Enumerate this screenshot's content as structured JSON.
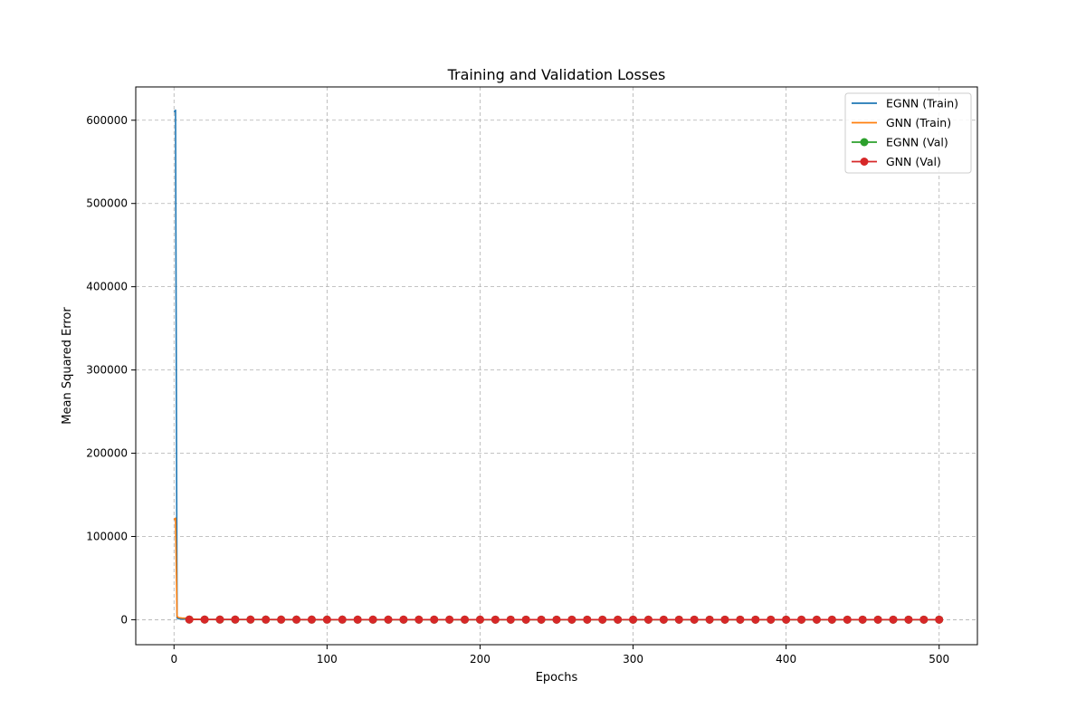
{
  "chart_data": {
    "type": "line",
    "title": "Training and Validation Losses",
    "xlabel": "Epochs",
    "ylabel": "Mean Squared Error",
    "xlim": [
      -25,
      525
    ],
    "ylim": [
      -30000,
      640000
    ],
    "xticks": [
      0,
      100,
      200,
      300,
      400,
      500
    ],
    "yticks": [
      0,
      100000,
      200000,
      300000,
      400000,
      500000,
      600000
    ],
    "grid": true,
    "legend_position": "top-right",
    "series": [
      {
        "name": "EGNN (Train)",
        "color": "#1f77b4",
        "marker": false,
        "x": [
          0,
          1,
          2,
          3,
          5,
          10,
          20,
          50,
          100,
          200,
          300,
          400,
          500
        ],
        "values": [
          610000,
          612000,
          2000,
          1200,
          800,
          500,
          300,
          200,
          150,
          120,
          100,
          90,
          80
        ]
      },
      {
        "name": "GNN (Train)",
        "color": "#ff7f0e",
        "marker": false,
        "x": [
          0,
          1,
          2,
          3,
          5,
          8,
          10,
          20,
          50,
          100,
          200,
          300,
          400,
          500
        ],
        "values": [
          120000,
          122000,
          4000,
          2500,
          2000,
          1800,
          1000,
          300,
          200,
          150,
          120,
          100,
          90,
          80
        ]
      },
      {
        "name": "EGNN (Val)",
        "color": "#2ca02c",
        "marker": true,
        "x": [
          10,
          20,
          30,
          40,
          50,
          60,
          70,
          80,
          90,
          100,
          110,
          120,
          130,
          140,
          150,
          160,
          170,
          180,
          190,
          200,
          210,
          220,
          230,
          240,
          250,
          260,
          270,
          280,
          290,
          300,
          310,
          320,
          330,
          340,
          350,
          360,
          370,
          380,
          390,
          400,
          410,
          420,
          430,
          440,
          450,
          460,
          470,
          480,
          490,
          500
        ],
        "values": [
          200,
          180,
          160,
          150,
          140,
          135,
          130,
          125,
          120,
          118,
          115,
          112,
          110,
          108,
          106,
          104,
          102,
          100,
          98,
          96,
          95,
          94,
          93,
          92,
          91,
          90,
          89,
          88,
          87,
          86,
          85,
          84,
          83,
          82,
          81,
          80,
          79,
          78,
          77,
          76,
          75,
          74,
          73,
          72,
          71,
          70,
          69,
          68,
          67,
          66
        ]
      },
      {
        "name": "GNN (Val)",
        "color": "#d62728",
        "marker": true,
        "x": [
          10,
          20,
          30,
          40,
          50,
          60,
          70,
          80,
          90,
          100,
          110,
          120,
          130,
          140,
          150,
          160,
          170,
          180,
          190,
          200,
          210,
          220,
          230,
          240,
          250,
          260,
          270,
          280,
          290,
          300,
          310,
          320,
          330,
          340,
          350,
          360,
          370,
          380,
          390,
          400,
          410,
          420,
          430,
          440,
          450,
          460,
          470,
          480,
          490,
          500
        ],
        "values": [
          250,
          220,
          200,
          190,
          180,
          170,
          160,
          155,
          150,
          145,
          140,
          135,
          130,
          128,
          126,
          124,
          122,
          120,
          118,
          116,
          114,
          112,
          110,
          108,
          106,
          104,
          102,
          100,
          98,
          96,
          95,
          94,
          93,
          92,
          91,
          90,
          89,
          88,
          87,
          86,
          85,
          84,
          83,
          82,
          81,
          80,
          79,
          78,
          77,
          76
        ]
      }
    ]
  }
}
